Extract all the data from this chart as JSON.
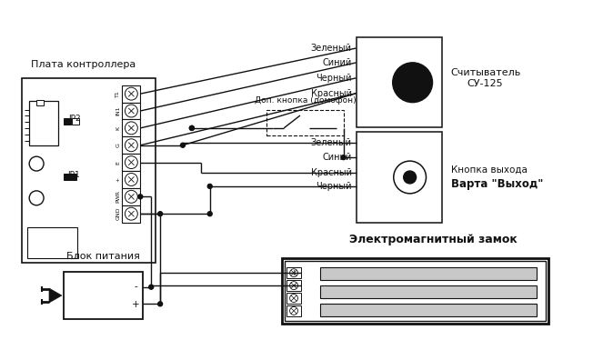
{
  "bg_color": "#ffffff",
  "lc": "#111111",
  "figsize": [
    6.63,
    3.85
  ],
  "dpi": 100,
  "board_label": "Плата контроллера",
  "power_label": "Блок питания",
  "reader_label": "Считыватель\nСУ-125",
  "exit_btn_label": "Кнопка выхода\nВарта «Выход»",
  "lock_label": "Электромагнитный замок",
  "add_btn_label": "Доп. кнопка (домофон)",
  "reader_wires": [
    "Зеленый",
    "Синий",
    "Черный",
    "Красный"
  ],
  "exit_wires": [
    "Зеленый",
    "Синий",
    "Красный",
    "Черный"
  ],
  "terminals": [
    "T1",
    "IN1",
    "K",
    "G",
    "E",
    "+",
    "PWR",
    "GND"
  ],
  "minus": "-",
  "plus": "+"
}
